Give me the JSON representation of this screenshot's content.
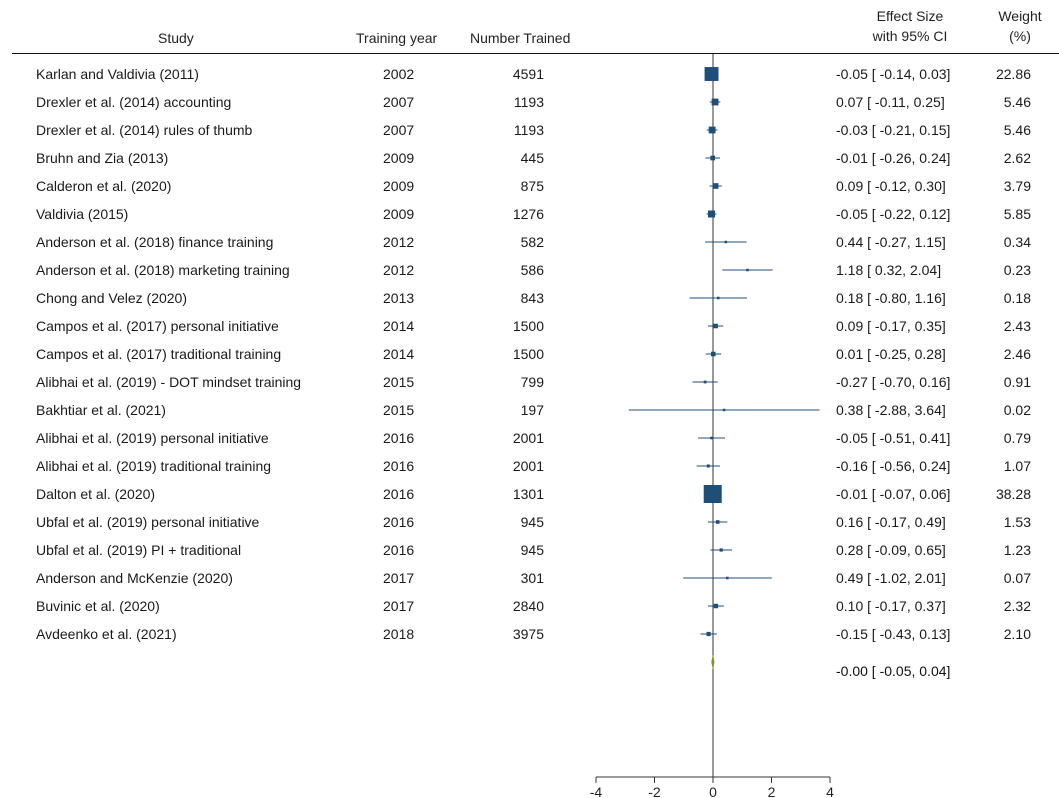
{
  "chart_data": {
    "type": "forest",
    "headers": {
      "study": "Study",
      "year": "Training year",
      "n": "Number Trained",
      "effect_line1": "Effect Size",
      "effect_line2": "with 95% CI",
      "weight_line1": "Weight",
      "weight_line2": "(%)"
    },
    "xlim": [
      -4,
      4
    ],
    "xticks": [
      "-4",
      "-2",
      "0",
      "2",
      "4"
    ],
    "reference_line": 0,
    "studies": [
      {
        "study": "Karlan and Valdivia (2011)",
        "year": "2002",
        "n": "4591",
        "es": -0.05,
        "lo": -0.14,
        "hi": 0.03,
        "ci_text": "-0.05 [ -0.14,  0.03]",
        "weight": "22.86"
      },
      {
        "study": "Drexler et al. (2014) accounting",
        "year": "2007",
        "n": "1193",
        "es": 0.07,
        "lo": -0.11,
        "hi": 0.25,
        "ci_text": "0.07 [ -0.11,  0.25]",
        "weight": "5.46"
      },
      {
        "study": "Drexler et al. (2014) rules of thumb",
        "year": "2007",
        "n": "1193",
        "es": -0.03,
        "lo": -0.21,
        "hi": 0.15,
        "ci_text": "-0.03 [ -0.21,  0.15]",
        "weight": "5.46"
      },
      {
        "study": "Bruhn and Zia (2013)",
        "year": "2009",
        "n": "445",
        "es": -0.01,
        "lo": -0.26,
        "hi": 0.24,
        "ci_text": "-0.01 [ -0.26,  0.24]",
        "weight": "2.62"
      },
      {
        "study": "Calderon et al. (2020)",
        "year": "2009",
        "n": "875",
        "es": 0.09,
        "lo": -0.12,
        "hi": 0.3,
        "ci_text": "0.09 [ -0.12,  0.30]",
        "weight": "3.79"
      },
      {
        "study": "Valdivia (2015)",
        "year": "2009",
        "n": "1276",
        "es": -0.05,
        "lo": -0.22,
        "hi": 0.12,
        "ci_text": "-0.05 [ -0.22,  0.12]",
        "weight": "5.85"
      },
      {
        "study": "Anderson et al. (2018) finance training",
        "year": "2012",
        "n": "582",
        "es": 0.44,
        "lo": -0.27,
        "hi": 1.15,
        "ci_text": "0.44 [ -0.27,  1.15]",
        "weight": "0.34"
      },
      {
        "study": "Anderson et al. (2018) marketing training",
        "year": "2012",
        "n": "586",
        "es": 1.18,
        "lo": 0.32,
        "hi": 2.04,
        "ci_text": "1.18 [  0.32,  2.04]",
        "weight": "0.23"
      },
      {
        "study": "Chong and Velez (2020)",
        "year": "2013",
        "n": "843",
        "es": 0.18,
        "lo": -0.8,
        "hi": 1.16,
        "ci_text": "0.18 [ -0.80,  1.16]",
        "weight": "0.18"
      },
      {
        "study": "Campos et al. (2017) personal initiative",
        "year": "2014",
        "n": "1500",
        "es": 0.09,
        "lo": -0.17,
        "hi": 0.35,
        "ci_text": "0.09 [ -0.17,  0.35]",
        "weight": "2.43"
      },
      {
        "study": "Campos et al. (2017) traditional training",
        "year": "2014",
        "n": "1500",
        "es": 0.01,
        "lo": -0.25,
        "hi": 0.28,
        "ci_text": "0.01 [ -0.25,  0.28]",
        "weight": "2.46"
      },
      {
        "study": "Alibhai et al. (2019) - DOT mindset training",
        "year": "2015",
        "n": "799",
        "es": -0.27,
        "lo": -0.7,
        "hi": 0.16,
        "ci_text": "-0.27 [ -0.70,  0.16]",
        "weight": "0.91"
      },
      {
        "study": "Bakhtiar et al. (2021)",
        "year": "2015",
        "n": "197",
        "es": 0.38,
        "lo": -2.88,
        "hi": 3.64,
        "ci_text": "0.38 [ -2.88,  3.64]",
        "weight": "0.02"
      },
      {
        "study": "Alibhai et al. (2019) personal initiative",
        "year": "2016",
        "n": "2001",
        "es": -0.05,
        "lo": -0.51,
        "hi": 0.41,
        "ci_text": "-0.05 [ -0.51,  0.41]",
        "weight": "0.79"
      },
      {
        "study": "Alibhai et al. (2019) traditional training",
        "year": "2016",
        "n": "2001",
        "es": -0.16,
        "lo": -0.56,
        "hi": 0.24,
        "ci_text": "-0.16 [ -0.56,  0.24]",
        "weight": "1.07"
      },
      {
        "study": "Dalton et al. (2020)",
        "year": "2016",
        "n": "1301",
        "es": -0.01,
        "lo": -0.07,
        "hi": 0.06,
        "ci_text": "-0.01 [ -0.07,  0.06]",
        "weight": "38.28"
      },
      {
        "study": "Ubfal et al. (2019) personal initiative",
        "year": "2016",
        "n": "945",
        "es": 0.16,
        "lo": -0.17,
        "hi": 0.49,
        "ci_text": "0.16 [ -0.17,  0.49]",
        "weight": "1.53"
      },
      {
        "study": "Ubfal et al. (2019) PI + traditional",
        "year": "2016",
        "n": "945",
        "es": 0.28,
        "lo": -0.09,
        "hi": 0.65,
        "ci_text": "0.28 [ -0.09,  0.65]",
        "weight": "1.23"
      },
      {
        "study": "Anderson and McKenzie (2020)",
        "year": "2017",
        "n": "301",
        "es": 0.49,
        "lo": -1.02,
        "hi": 2.01,
        "ci_text": "0.49 [ -1.02,  2.01]",
        "weight": "0.07"
      },
      {
        "study": "Buvinic et al. (2020)",
        "year": "2017",
        "n": "2840",
        "es": 0.1,
        "lo": -0.17,
        "hi": 0.37,
        "ci_text": "0.10 [ -0.17,  0.37]",
        "weight": "2.32"
      },
      {
        "study": "Avdeenko et al. (2021)",
        "year": "2018",
        "n": "3975",
        "es": -0.15,
        "lo": -0.43,
        "hi": 0.13,
        "ci_text": "-0.15 [ -0.43,  0.13]",
        "weight": "2.10"
      }
    ],
    "overall": {
      "es": -0.0,
      "lo": -0.05,
      "hi": 0.04,
      "ci_text": "-0.00 [ -0.05,  0.04]"
    },
    "colors": {
      "marker": "#1f4e79",
      "ci_line": "#1f4e79",
      "diamond": "#8c8c2a",
      "axis": "#333333"
    }
  }
}
